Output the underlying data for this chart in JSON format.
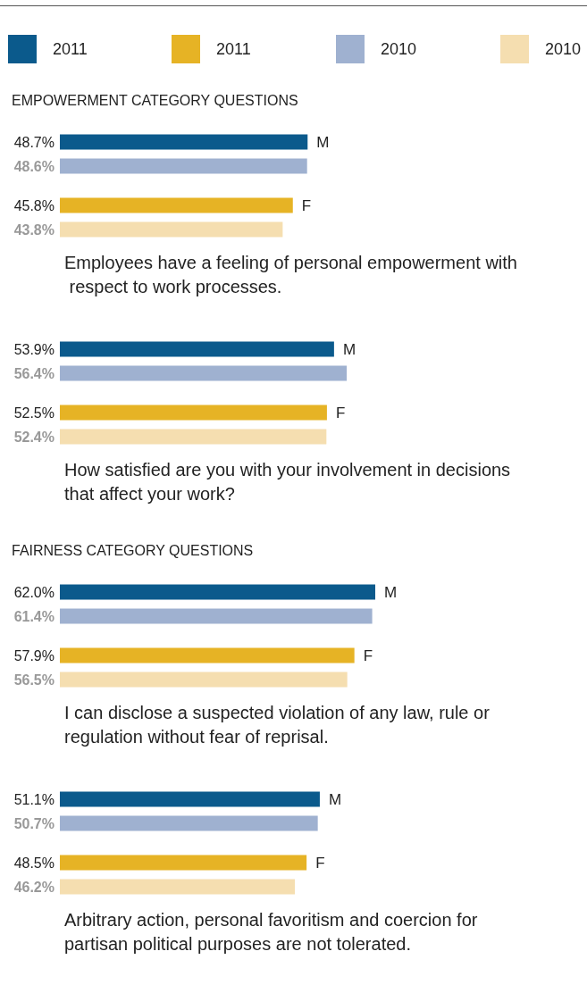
{
  "chart_data": [
    {
      "type": "bar",
      "orientation": "horizontal",
      "title": "EMPOWERMENT CATEGORY QUESTIONS",
      "xlabel": "Employees have a feeling of personal empowerment with respect to work processes.",
      "legend": "top",
      "categories": [
        "M",
        "F"
      ],
      "series": [
        {
          "name": "2011",
          "colors": [
            "#0b5a8c",
            "#e6b325"
          ],
          "values": [
            48.7,
            45.8
          ],
          "value_labels": [
            "48.7%",
            "45.8%"
          ]
        },
        {
          "name": "2010",
          "colors": [
            "#9fb1d0",
            "#f5deb0"
          ],
          "values": [
            48.6,
            43.8
          ],
          "value_labels": [
            "48.6%",
            "43.8%"
          ]
        }
      ]
    },
    {
      "type": "bar",
      "orientation": "horizontal",
      "xlabel": "How satisfied are you with your involvement in decisions that affect your work?",
      "categories": [
        "M",
        "F"
      ],
      "series": [
        {
          "colors": [
            "#0b5a8c",
            "#e6b325"
          ],
          "values": [
            53.9,
            52.5
          ],
          "value_labels": [
            "53.9%",
            "52.5%"
          ]
        },
        {
          "colors": [
            "#9fb1d0",
            "#f5deb0"
          ],
          "values": [
            56.4,
            52.4
          ],
          "value_labels": [
            "56.4%",
            "52.4%"
          ]
        }
      ]
    },
    {
      "type": "bar",
      "orientation": "horizontal",
      "title": "FAIRNESS CATEGORY QUESTIONS",
      "xlabel": "I can disclose a suspected violation of any law, rule or regulation without fear of reprisal.",
      "categories": [
        "M",
        "F"
      ],
      "series": [
        {
          "colors": [
            "#0b5a8c",
            "#e6b325"
          ],
          "values": [
            62.0,
            57.9
          ],
          "value_labels": [
            "62.0%",
            "57.9%"
          ]
        },
        {
          "colors": [
            "#9fb1d0",
            "#f5deb0"
          ],
          "values": [
            61.4,
            56.5
          ],
          "value_labels": [
            "61.4%",
            "56.5%"
          ]
        }
      ]
    },
    {
      "type": "bar",
      "orientation": "horizontal",
      "xlabel": "Arbitrary action, personal favoritism and coercion for partisan political purposes are not tolerated.",
      "categories": [
        "M",
        "F"
      ],
      "series": [
        {
          "colors": [
            "#0b5a8c",
            "#e6b325"
          ],
          "values": [
            51.1,
            48.5
          ],
          "value_labels": [
            "51.1%",
            "48.5%"
          ]
        },
        {
          "colors": [
            "#9fb1d0",
            "#f5deb0"
          ],
          "values": [
            50.7,
            46.2
          ],
          "value_labels": [
            "50.7%",
            "46.2%"
          ]
        }
      ]
    }
  ]
}
